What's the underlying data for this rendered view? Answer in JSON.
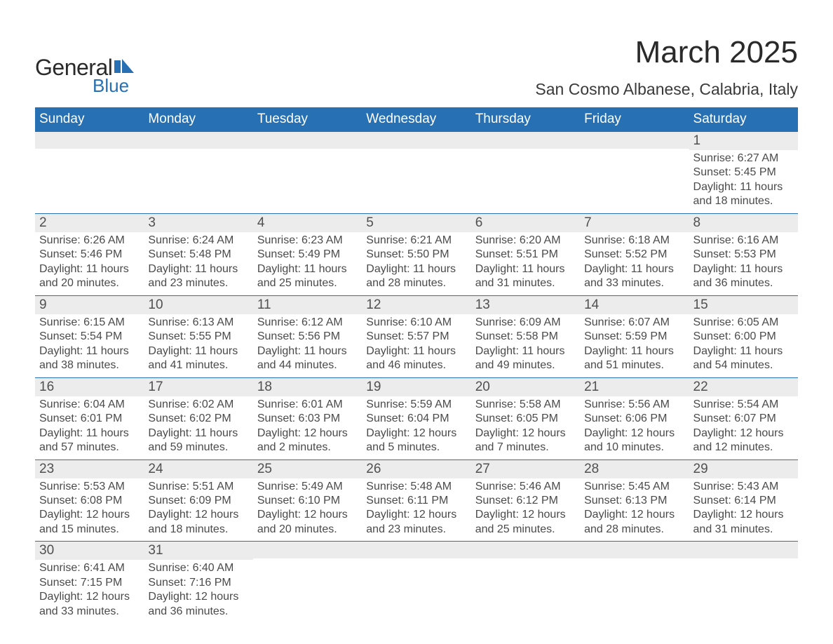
{
  "logo": {
    "text_general": "General",
    "text_blue": "Blue",
    "flag_color": "#2670b3"
  },
  "title": "March 2025",
  "location": "San Cosmo Albanese, Calabria, Italy",
  "colors": {
    "header_bg": "#2670b3",
    "header_text": "#ffffff",
    "daynum_bg": "#ececec",
    "row_divider": "#2670b3",
    "body_text": "#4a4a4a"
  },
  "day_headers": [
    "Sunday",
    "Monday",
    "Tuesday",
    "Wednesday",
    "Thursday",
    "Friday",
    "Saturday"
  ],
  "weeks": [
    [
      {
        "day": "",
        "sunrise": "",
        "sunset": "",
        "daylight1": "",
        "daylight2": ""
      },
      {
        "day": "",
        "sunrise": "",
        "sunset": "",
        "daylight1": "",
        "daylight2": ""
      },
      {
        "day": "",
        "sunrise": "",
        "sunset": "",
        "daylight1": "",
        "daylight2": ""
      },
      {
        "day": "",
        "sunrise": "",
        "sunset": "",
        "daylight1": "",
        "daylight2": ""
      },
      {
        "day": "",
        "sunrise": "",
        "sunset": "",
        "daylight1": "",
        "daylight2": ""
      },
      {
        "day": "",
        "sunrise": "",
        "sunset": "",
        "daylight1": "",
        "daylight2": ""
      },
      {
        "day": "1",
        "sunrise": "Sunrise: 6:27 AM",
        "sunset": "Sunset: 5:45 PM",
        "daylight1": "Daylight: 11 hours",
        "daylight2": "and 18 minutes."
      }
    ],
    [
      {
        "day": "2",
        "sunrise": "Sunrise: 6:26 AM",
        "sunset": "Sunset: 5:46 PM",
        "daylight1": "Daylight: 11 hours",
        "daylight2": "and 20 minutes."
      },
      {
        "day": "3",
        "sunrise": "Sunrise: 6:24 AM",
        "sunset": "Sunset: 5:48 PM",
        "daylight1": "Daylight: 11 hours",
        "daylight2": "and 23 minutes."
      },
      {
        "day": "4",
        "sunrise": "Sunrise: 6:23 AM",
        "sunset": "Sunset: 5:49 PM",
        "daylight1": "Daylight: 11 hours",
        "daylight2": "and 25 minutes."
      },
      {
        "day": "5",
        "sunrise": "Sunrise: 6:21 AM",
        "sunset": "Sunset: 5:50 PM",
        "daylight1": "Daylight: 11 hours",
        "daylight2": "and 28 minutes."
      },
      {
        "day": "6",
        "sunrise": "Sunrise: 6:20 AM",
        "sunset": "Sunset: 5:51 PM",
        "daylight1": "Daylight: 11 hours",
        "daylight2": "and 31 minutes."
      },
      {
        "day": "7",
        "sunrise": "Sunrise: 6:18 AM",
        "sunset": "Sunset: 5:52 PM",
        "daylight1": "Daylight: 11 hours",
        "daylight2": "and 33 minutes."
      },
      {
        "day": "8",
        "sunrise": "Sunrise: 6:16 AM",
        "sunset": "Sunset: 5:53 PM",
        "daylight1": "Daylight: 11 hours",
        "daylight2": "and 36 minutes."
      }
    ],
    [
      {
        "day": "9",
        "sunrise": "Sunrise: 6:15 AM",
        "sunset": "Sunset: 5:54 PM",
        "daylight1": "Daylight: 11 hours",
        "daylight2": "and 38 minutes."
      },
      {
        "day": "10",
        "sunrise": "Sunrise: 6:13 AM",
        "sunset": "Sunset: 5:55 PM",
        "daylight1": "Daylight: 11 hours",
        "daylight2": "and 41 minutes."
      },
      {
        "day": "11",
        "sunrise": "Sunrise: 6:12 AM",
        "sunset": "Sunset: 5:56 PM",
        "daylight1": "Daylight: 11 hours",
        "daylight2": "and 44 minutes."
      },
      {
        "day": "12",
        "sunrise": "Sunrise: 6:10 AM",
        "sunset": "Sunset: 5:57 PM",
        "daylight1": "Daylight: 11 hours",
        "daylight2": "and 46 minutes."
      },
      {
        "day": "13",
        "sunrise": "Sunrise: 6:09 AM",
        "sunset": "Sunset: 5:58 PM",
        "daylight1": "Daylight: 11 hours",
        "daylight2": "and 49 minutes."
      },
      {
        "day": "14",
        "sunrise": "Sunrise: 6:07 AM",
        "sunset": "Sunset: 5:59 PM",
        "daylight1": "Daylight: 11 hours",
        "daylight2": "and 51 minutes."
      },
      {
        "day": "15",
        "sunrise": "Sunrise: 6:05 AM",
        "sunset": "Sunset: 6:00 PM",
        "daylight1": "Daylight: 11 hours",
        "daylight2": "and 54 minutes."
      }
    ],
    [
      {
        "day": "16",
        "sunrise": "Sunrise: 6:04 AM",
        "sunset": "Sunset: 6:01 PM",
        "daylight1": "Daylight: 11 hours",
        "daylight2": "and 57 minutes."
      },
      {
        "day": "17",
        "sunrise": "Sunrise: 6:02 AM",
        "sunset": "Sunset: 6:02 PM",
        "daylight1": "Daylight: 11 hours",
        "daylight2": "and 59 minutes."
      },
      {
        "day": "18",
        "sunrise": "Sunrise: 6:01 AM",
        "sunset": "Sunset: 6:03 PM",
        "daylight1": "Daylight: 12 hours",
        "daylight2": "and 2 minutes."
      },
      {
        "day": "19",
        "sunrise": "Sunrise: 5:59 AM",
        "sunset": "Sunset: 6:04 PM",
        "daylight1": "Daylight: 12 hours",
        "daylight2": "and 5 minutes."
      },
      {
        "day": "20",
        "sunrise": "Sunrise: 5:58 AM",
        "sunset": "Sunset: 6:05 PM",
        "daylight1": "Daylight: 12 hours",
        "daylight2": "and 7 minutes."
      },
      {
        "day": "21",
        "sunrise": "Sunrise: 5:56 AM",
        "sunset": "Sunset: 6:06 PM",
        "daylight1": "Daylight: 12 hours",
        "daylight2": "and 10 minutes."
      },
      {
        "day": "22",
        "sunrise": "Sunrise: 5:54 AM",
        "sunset": "Sunset: 6:07 PM",
        "daylight1": "Daylight: 12 hours",
        "daylight2": "and 12 minutes."
      }
    ],
    [
      {
        "day": "23",
        "sunrise": "Sunrise: 5:53 AM",
        "sunset": "Sunset: 6:08 PM",
        "daylight1": "Daylight: 12 hours",
        "daylight2": "and 15 minutes."
      },
      {
        "day": "24",
        "sunrise": "Sunrise: 5:51 AM",
        "sunset": "Sunset: 6:09 PM",
        "daylight1": "Daylight: 12 hours",
        "daylight2": "and 18 minutes."
      },
      {
        "day": "25",
        "sunrise": "Sunrise: 5:49 AM",
        "sunset": "Sunset: 6:10 PM",
        "daylight1": "Daylight: 12 hours",
        "daylight2": "and 20 minutes."
      },
      {
        "day": "26",
        "sunrise": "Sunrise: 5:48 AM",
        "sunset": "Sunset: 6:11 PM",
        "daylight1": "Daylight: 12 hours",
        "daylight2": "and 23 minutes."
      },
      {
        "day": "27",
        "sunrise": "Sunrise: 5:46 AM",
        "sunset": "Sunset: 6:12 PM",
        "daylight1": "Daylight: 12 hours",
        "daylight2": "and 25 minutes."
      },
      {
        "day": "28",
        "sunrise": "Sunrise: 5:45 AM",
        "sunset": "Sunset: 6:13 PM",
        "daylight1": "Daylight: 12 hours",
        "daylight2": "and 28 minutes."
      },
      {
        "day": "29",
        "sunrise": "Sunrise: 5:43 AM",
        "sunset": "Sunset: 6:14 PM",
        "daylight1": "Daylight: 12 hours",
        "daylight2": "and 31 minutes."
      }
    ],
    [
      {
        "day": "30",
        "sunrise": "Sunrise: 6:41 AM",
        "sunset": "Sunset: 7:15 PM",
        "daylight1": "Daylight: 12 hours",
        "daylight2": "and 33 minutes."
      },
      {
        "day": "31",
        "sunrise": "Sunrise: 6:40 AM",
        "sunset": "Sunset: 7:16 PM",
        "daylight1": "Daylight: 12 hours",
        "daylight2": "and 36 minutes."
      },
      {
        "day": "",
        "sunrise": "",
        "sunset": "",
        "daylight1": "",
        "daylight2": ""
      },
      {
        "day": "",
        "sunrise": "",
        "sunset": "",
        "daylight1": "",
        "daylight2": ""
      },
      {
        "day": "",
        "sunrise": "",
        "sunset": "",
        "daylight1": "",
        "daylight2": ""
      },
      {
        "day": "",
        "sunrise": "",
        "sunset": "",
        "daylight1": "",
        "daylight2": ""
      },
      {
        "day": "",
        "sunrise": "",
        "sunset": "",
        "daylight1": "",
        "daylight2": ""
      }
    ]
  ]
}
